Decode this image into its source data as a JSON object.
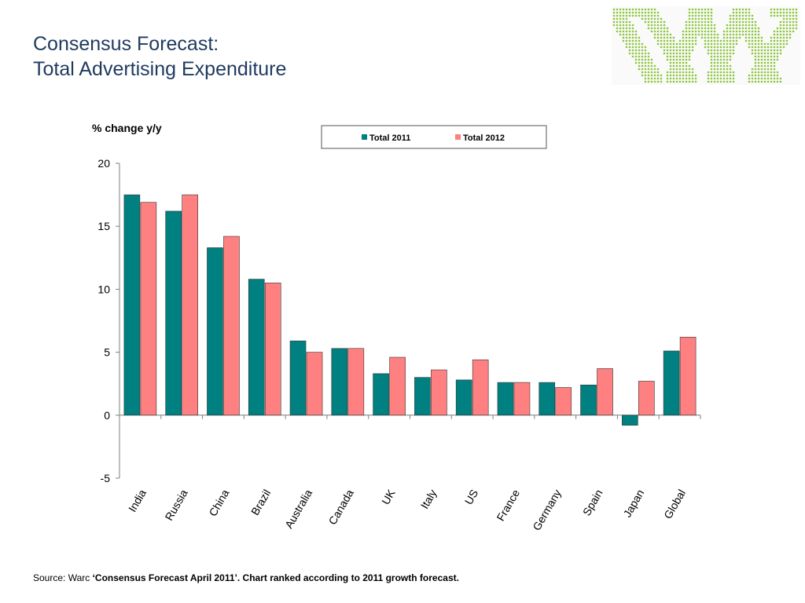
{
  "header": {
    "title_line1": "Consensus Forecast:",
    "title_line2": "Total Advertising Expenditure"
  },
  "logo": {
    "name": "warc-logo-icon",
    "color": "#8dc63f"
  },
  "chart_data": {
    "type": "bar",
    "ylabel": "% change y/y",
    "ylim": [
      -5,
      20
    ],
    "yticks": [
      20,
      15,
      10,
      5,
      0,
      -5
    ],
    "grid": false,
    "legend_position": "top-right",
    "categories": [
      "India",
      "Russia",
      "China",
      "Brazil",
      "Australia",
      "Canada",
      "UK",
      "Italy",
      "US",
      "France",
      "Germany",
      "Spain",
      "Japan",
      "Global"
    ],
    "series": [
      {
        "name": "Total 2011",
        "color": "#008080",
        "values": [
          17.5,
          16.2,
          13.3,
          10.8,
          5.9,
          5.3,
          3.3,
          3.0,
          2.8,
          2.6,
          2.6,
          2.4,
          -0.8,
          5.1
        ]
      },
      {
        "name": "Total 2012",
        "color": "#ff8080",
        "values": [
          16.9,
          17.5,
          14.2,
          10.5,
          5.0,
          5.3,
          4.6,
          3.6,
          4.4,
          2.6,
          2.2,
          3.7,
          2.7,
          6.2
        ]
      }
    ]
  },
  "footer": {
    "source_prefix": "Source: Warc ",
    "source_text": "‘Consensus Forecast April 2011’. Chart ranked according to 2011 growth forecast."
  }
}
